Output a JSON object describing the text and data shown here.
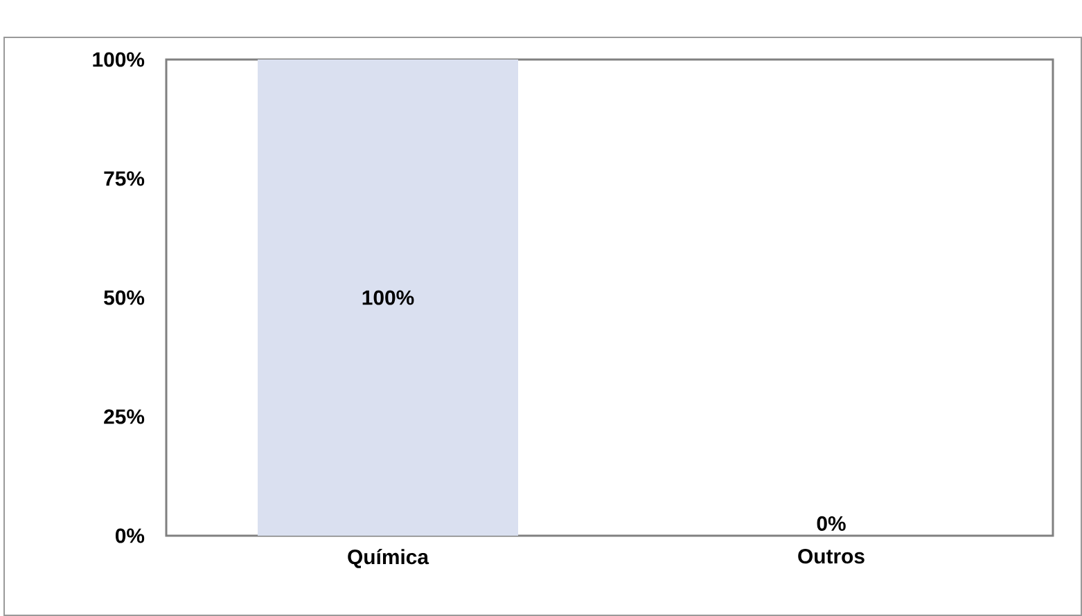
{
  "chart_data": {
    "type": "bar",
    "categories": [
      "Química",
      "Outros"
    ],
    "values": [
      100,
      0
    ],
    "color": "#dae0f0",
    "value_labels": [
      "100%",
      "0%"
    ],
    "ylim": [
      0,
      100
    ],
    "yticks": [
      {
        "value": 0,
        "label": "0%"
      },
      {
        "value": 25,
        "label": "25%"
      },
      {
        "value": 50,
        "label": "50%"
      },
      {
        "value": 75,
        "label": "75%"
      },
      {
        "value": 100,
        "label": "100%"
      }
    ],
    "grid": false
  }
}
